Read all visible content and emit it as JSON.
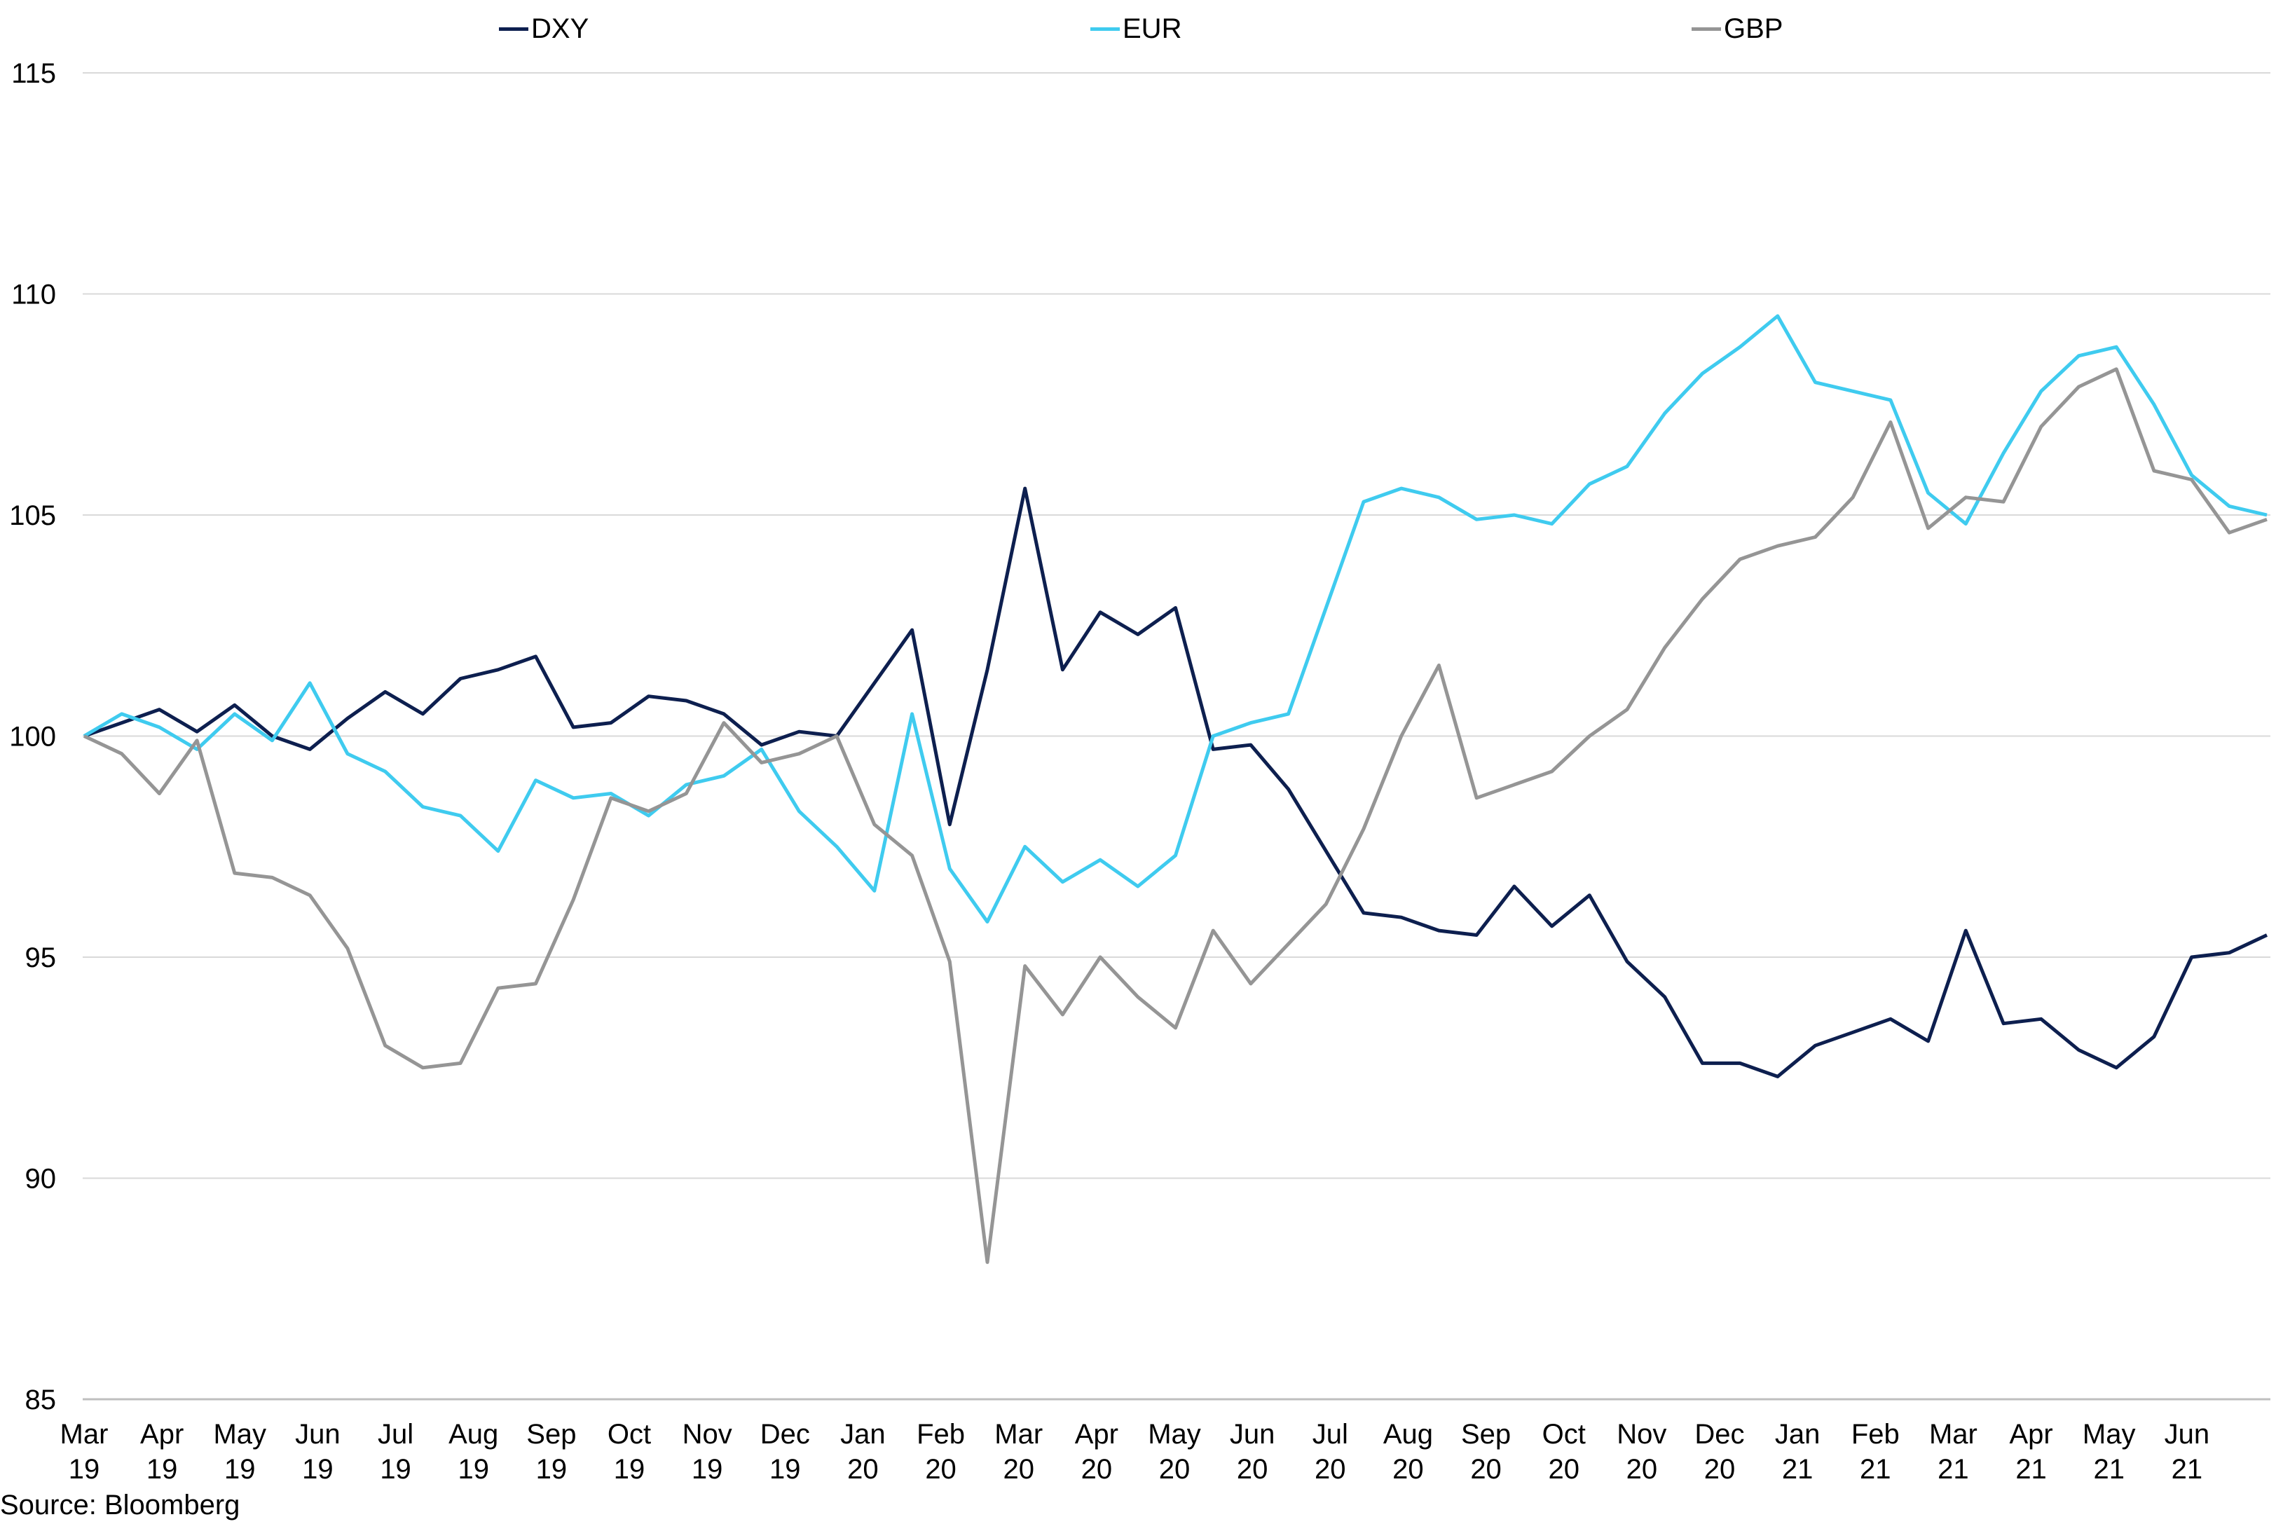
{
  "chart_data": {
    "type": "line",
    "title": "",
    "xlabel": "",
    "ylabel": "",
    "ylim": [
      85,
      115
    ],
    "yticks": [
      85,
      90,
      95,
      100,
      105,
      110,
      115
    ],
    "grid": true,
    "legend_position": "top",
    "x_tick_labels": [
      {
        "month": "Mar",
        "year": "19"
      },
      {
        "month": "Apr",
        "year": "19"
      },
      {
        "month": "May",
        "year": "19"
      },
      {
        "month": "Jun",
        "year": "19"
      },
      {
        "month": "Jul",
        "year": "19"
      },
      {
        "month": "Aug",
        "year": "19"
      },
      {
        "month": "Sep",
        "year": "19"
      },
      {
        "month": "Oct",
        "year": "19"
      },
      {
        "month": "Nov",
        "year": "19"
      },
      {
        "month": "Dec",
        "year": "19"
      },
      {
        "month": "Jan",
        "year": "20"
      },
      {
        "month": "Feb",
        "year": "20"
      },
      {
        "month": "Mar",
        "year": "20"
      },
      {
        "month": "Apr",
        "year": "20"
      },
      {
        "month": "May",
        "year": "20"
      },
      {
        "month": "Jun",
        "year": "20"
      },
      {
        "month": "Jul",
        "year": "20"
      },
      {
        "month": "Aug",
        "year": "20"
      },
      {
        "month": "Sep",
        "year": "20"
      },
      {
        "month": "Oct",
        "year": "20"
      },
      {
        "month": "Nov",
        "year": "20"
      },
      {
        "month": "Dec",
        "year": "20"
      },
      {
        "month": "Jan",
        "year": "21"
      },
      {
        "month": "Feb",
        "year": "21"
      },
      {
        "month": "Mar",
        "year": "21"
      },
      {
        "month": "Apr",
        "year": "21"
      },
      {
        "month": "May",
        "year": "21"
      },
      {
        "month": "Jun",
        "year": "21"
      }
    ],
    "x": [
      "Mar-19",
      "Mar-19b",
      "Apr-19",
      "Apr-19b",
      "May-19",
      "May-19b",
      "Jun-19",
      "Jun-19b",
      "Jul-19",
      "Jul-19b",
      "Aug-19",
      "Aug-19b",
      "Sep-19",
      "Sep-19b",
      "Oct-19",
      "Oct-19b",
      "Nov-19",
      "Nov-19b",
      "Dec-19",
      "Dec-19b",
      "Jan-20",
      "Jan-20b",
      "Feb-20",
      "Feb-20b",
      "Feb-20c",
      "Mar-20",
      "Mar-20b",
      "Mar-20c",
      "Apr-20",
      "Apr-20b",
      "May-20",
      "May-20b",
      "Jun-20",
      "Jun-20b",
      "Jul-20",
      "Jul-20b",
      "Aug-20",
      "Aug-20b",
      "Sep-20",
      "Sep-20b",
      "Oct-20",
      "Oct-20b",
      "Nov-20",
      "Nov-20b",
      "Dec-20",
      "Dec-20b",
      "Jan-21",
      "Jan-21b",
      "Feb-21",
      "Feb-21b",
      "Mar-21",
      "Mar-21b",
      "Apr-21",
      "Apr-21b",
      "May-21",
      "May-21b",
      "Jun-21",
      "Jun-21b",
      "Jun-21c"
    ],
    "series": [
      {
        "name": "DXY",
        "color": "#0d1f4f",
        "values": [
          100.0,
          100.3,
          100.6,
          100.1,
          100.7,
          100.0,
          99.7,
          100.4,
          101.0,
          100.5,
          101.3,
          101.5,
          101.8,
          100.2,
          100.3,
          100.9,
          100.8,
          100.5,
          99.8,
          100.1,
          100.0,
          101.2,
          102.4,
          98.0,
          101.5,
          105.6,
          101.5,
          102.8,
          102.3,
          102.9,
          99.7,
          99.8,
          98.8,
          97.4,
          96.0,
          95.9,
          95.6,
          95.5,
          96.6,
          95.7,
          96.4,
          94.9,
          94.1,
          92.6,
          92.6,
          92.3,
          93.0,
          93.3,
          93.6,
          93.1,
          95.6,
          93.5,
          93.6,
          92.9,
          92.5,
          93.2,
          95.0,
          95.1,
          95.5
        ]
      },
      {
        "name": "EUR",
        "color": "#3fcbef",
        "values": [
          100.0,
          100.5,
          100.2,
          99.7,
          100.5,
          99.9,
          101.2,
          99.6,
          99.2,
          98.4,
          98.2,
          97.4,
          99.0,
          98.6,
          98.7,
          98.2,
          98.9,
          99.1,
          99.7,
          98.3,
          97.5,
          96.5,
          100.5,
          97.0,
          95.8,
          97.5,
          96.7,
          97.2,
          96.6,
          97.3,
          100.0,
          100.3,
          100.5,
          102.9,
          105.3,
          105.6,
          105.4,
          104.9,
          105.0,
          104.8,
          105.7,
          106.1,
          107.3,
          108.2,
          108.8,
          109.5,
          108.0,
          107.8,
          107.6,
          105.5,
          104.8,
          106.4,
          107.8,
          108.6,
          108.8,
          107.5,
          105.9,
          105.2,
          105.0
        ]
      },
      {
        "name": "GBP",
        "color": "#959595",
        "values": [
          100.0,
          99.6,
          98.7,
          99.9,
          96.9,
          96.8,
          96.4,
          95.2,
          93.0,
          92.5,
          92.6,
          94.3,
          94.4,
          96.3,
          98.6,
          98.3,
          98.7,
          100.3,
          99.4,
          99.6,
          100.0,
          98.0,
          97.3,
          94.9,
          88.1,
          94.8,
          93.7,
          95.0,
          94.1,
          93.4,
          95.6,
          94.4,
          95.3,
          96.2,
          97.9,
          100.0,
          101.6,
          98.6,
          98.9,
          99.2,
          100.0,
          100.6,
          102.0,
          103.1,
          104.0,
          104.3,
          104.5,
          105.4,
          107.1,
          104.7,
          105.4,
          105.3,
          107.0,
          107.9,
          108.3,
          106.0,
          105.8,
          104.6,
          104.9
        ]
      }
    ],
    "source": "Source: Bloomberg"
  }
}
